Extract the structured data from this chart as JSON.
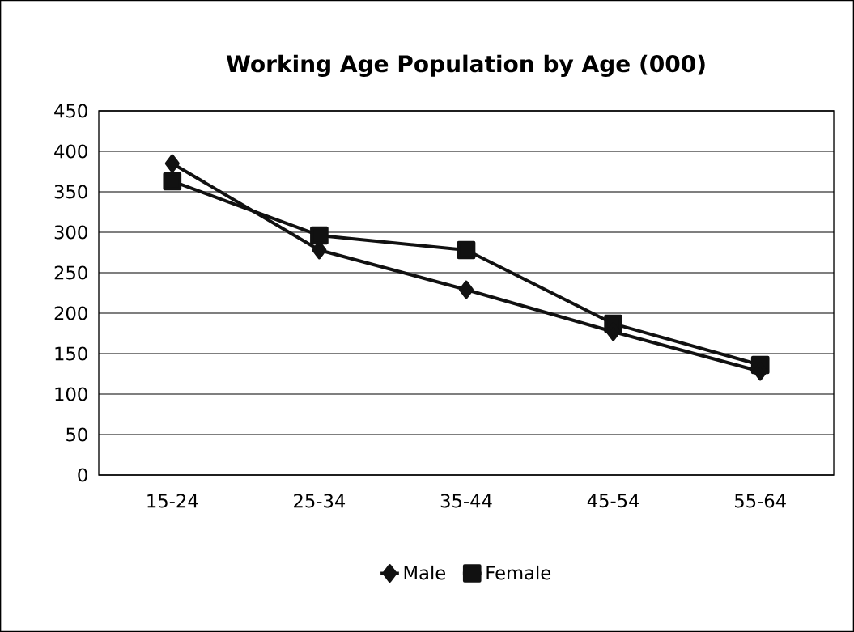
{
  "chart_data": {
    "type": "line",
    "title": "Working Age Population by Age (000)",
    "categories": [
      "15-24",
      "25-34",
      "35-44",
      "45-54",
      "55-64"
    ],
    "series": [
      {
        "name": "Male",
        "color": "#111111",
        "marker": "diamond",
        "values": [
          385,
          278,
          229,
          177,
          128
        ]
      },
      {
        "name": "Female",
        "color": "#111111",
        "marker": "square",
        "values": [
          363,
          296,
          278,
          187,
          136
        ]
      }
    ],
    "ylim": [
      0,
      450
    ],
    "yticks": [
      0,
      50,
      100,
      150,
      200,
      250,
      300,
      350,
      400,
      450
    ],
    "grid": "y",
    "legend": "bottom",
    "line_style": "solid"
  }
}
